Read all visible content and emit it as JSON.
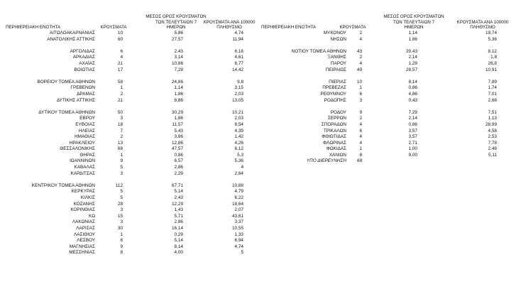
{
  "headers": {
    "unit": "ΠΕΡΙΦΕΡΕΙΑΚΗ ΕΝΟΤΗΤΑ",
    "cases": "ΚΡΟΥΣΜΑΤΑ",
    "avg7_line1": "ΜΕΣΟΣ ΟΡΟΣ ΚΡΟΥΣΜΑΤΩΝ",
    "avg7_line2": "ΤΩΝ ΤΕΛΕΥΤΑΙΩΝ 7",
    "avg7_line3": "ΗΜΕΡΩΝ",
    "per100k_line1": "ΚΡΟΥΣΜΑΤΑ ΑΝΑ 100000",
    "per100k_line2": "ΠΛΗΘΥΣΜΟ"
  },
  "left_rows": [
    {
      "name": "ΑΙΤΩΛΟΑΚΑΡΝΑΝΙΑΣ",
      "cases": "10",
      "avg": "5,86",
      "per": "4,74"
    },
    {
      "name": "ΑΝΑΤΟΛΙΚΗΣ ΑΤΤΙΚΗΣ",
      "cases": "60",
      "avg": "27,57",
      "per": "11,94"
    },
    {
      "blank": true
    },
    {
      "name": "ΑΡΓΟΛΙΔΑΣ",
      "cases": "6",
      "avg": "2,43",
      "per": "6,18"
    },
    {
      "name": "ΑΡΚΑΔΙΑΣ",
      "cases": "4",
      "avg": "3,14",
      "per": "4,61"
    },
    {
      "name": "ΑΧΑΪΑΣ",
      "cases": "21",
      "avg": "10,86",
      "per": "6,77"
    },
    {
      "name": "ΒΟΙΩΤΙΑΣ",
      "cases": "17",
      "avg": "7,29",
      "per": "14,42"
    },
    {
      "blank": true
    },
    {
      "name": "ΒΟΡΕΙΟΥ ΤΟΜΕΑ ΑΘΗΝΩΝ",
      "cases": "58",
      "avg": "24,86",
      "per": "9,8"
    },
    {
      "name": "ΓΡΕΒΕΝΩΝ",
      "cases": "1",
      "avg": "1,14",
      "per": "3,15"
    },
    {
      "name": "ΔΡΑΜΑΣ",
      "cases": "2",
      "avg": "1,86",
      "per": "2,03"
    },
    {
      "name": "ΔΥΤΙΚΗΣ ΑΤΤΙΚΗΣ",
      "cases": "21",
      "avg": "8,86",
      "per": "13,05"
    },
    {
      "blank": true
    },
    {
      "name": "ΔΥΤΙΚΟΥ ΤΟΜΕΑ ΑΘΗΝΩΝ",
      "cases": "50",
      "avg": "30,29",
      "per": "10,21"
    },
    {
      "name": "ΕΒΡΟΥ",
      "cases": "3",
      "avg": "1,86",
      "per": "2,03"
    },
    {
      "name": "ΕΥΒΟΙΑΣ",
      "cases": "18",
      "avg": "11,57",
      "per": "8,54"
    },
    {
      "name": "ΗΛΕΙΑΣ",
      "cases": "7",
      "avg": "5,43",
      "per": "4,39"
    },
    {
      "name": "ΗΜΑΘΙΑΣ",
      "cases": "2",
      "avg": "3,86",
      "per": "1,42"
    },
    {
      "name": "ΗΡΑΚΛΕΙΟΥ",
      "cases": "13",
      "avg": "12,86",
      "per": "4,26"
    },
    {
      "name": "ΘΕΣΣΑΛΟΝΙΚΗΣ",
      "cases": "68",
      "avg": "47,57",
      "per": "6,12"
    },
    {
      "name": "ΘΗΡΑΣ",
      "cases": "1",
      "avg": "0,86",
      "per": "5,3"
    },
    {
      "name": "ΙΩΑΝΝΙΝΩΝ",
      "cases": "9",
      "avg": "6,57",
      "per": "5,36"
    },
    {
      "name": "ΚΑΒΑΛΑΣ",
      "cases": "5",
      "avg": "2,86",
      "per": "4"
    },
    {
      "name": "ΚΑΡΔΙΤΣΑΣ",
      "cases": "3",
      "avg": "2,29",
      "per": "2,64"
    },
    {
      "blank": true
    },
    {
      "name": "ΚΕΝΤΡΙΚΟΥ ΤΟΜΕΑ ΑΘΗΝΩΝ",
      "cases": "112",
      "avg": "67,71",
      "per": "10,88"
    },
    {
      "name": "ΚΕΡΚΥΡΑΣ",
      "cases": "5",
      "avg": "5,14",
      "per": "4,79"
    },
    {
      "name": "ΚΙΛΚΙΣ",
      "cases": "5",
      "avg": "2,43",
      "per": "6,22"
    },
    {
      "name": "ΚΟΖΑΝΗΣ",
      "cases": "28",
      "avg": "12,29",
      "per": "18,64"
    },
    {
      "name": "ΚΟΡΙΝΘΙΑΣ",
      "cases": "3",
      "avg": "1,43",
      "per": "2,07"
    },
    {
      "name": "ΚΩ",
      "cases": "15",
      "avg": "5,71",
      "per": "43,61"
    },
    {
      "name": "ΛΑΚΩΝΙΑΣ",
      "cases": "3",
      "avg": "2,86",
      "per": "3,37"
    },
    {
      "name": "ΛΑΡΙΣΑΣ",
      "cases": "30",
      "avg": "16,14",
      "per": "10,55"
    },
    {
      "name": "ΛΑΣΙΘΙΟΥ",
      "cases": "1",
      "avg": "0,29",
      "per": "1,33"
    },
    {
      "name": "ΛΕΣΒΟΥ",
      "cases": "6",
      "avg": "5,14",
      "per": "6,94"
    },
    {
      "name": "ΜΑΓΝΗΣΙΑΣ",
      "cases": "9",
      "avg": "8,14",
      "per": "4,74"
    },
    {
      "name": "ΜΕΣΣΗΝΙΑΣ",
      "cases": "8",
      "avg": "4,00",
      "per": "5"
    }
  ],
  "right_rows": [
    {
      "name": "ΜΥΚΟΝΟΥ",
      "cases": "2",
      "avg": "1,14",
      "per": "19,74"
    },
    {
      "name": "ΝΗΣΩΝ",
      "cases": "4",
      "avg": "1,86",
      "per": "5,36"
    },
    {
      "blank": true
    },
    {
      "name": "ΝΟΤΙΟΥ ΤΟΜΕΑ ΑΘΗΝΩΝ",
      "cases": "43",
      "avg": "29,43",
      "per": "8,12"
    },
    {
      "name": "ΞΑΝΘΗΣ",
      "cases": "2",
      "avg": "2,14",
      "per": "1,8"
    },
    {
      "name": "ΠΑΡΟΥ",
      "cases": "4",
      "avg": "1,29",
      "per": "26,8"
    },
    {
      "name": "ΠΕΙΡΑΙΩΣ",
      "cases": "49",
      "avg": "28,57",
      "per": "10,91"
    },
    {
      "blank": true
    },
    {
      "name": "ΠΙΕΡΙΑΣ",
      "cases": "10",
      "avg": "8,14",
      "per": "7,89"
    },
    {
      "name": "ΠΡΕΒΕΖΑΣ",
      "cases": "1",
      "avg": "0,86",
      "per": "1,74"
    },
    {
      "name": "ΡΕΘΥΜΝΟΥ",
      "cases": "6",
      "avg": "4,86",
      "per": "7,01"
    },
    {
      "name": "ΡΟΔΟΠΗΣ",
      "cases": "3",
      "avg": "0,43",
      "per": "2,68"
    },
    {
      "blank": true
    },
    {
      "name": "ΡΟΔΟΥ",
      "cases": "9",
      "avg": "7,29",
      "per": "7,51"
    },
    {
      "name": "ΣΕΡΡΩΝ",
      "cases": "2",
      "avg": "2,14",
      "per": "1,13"
    },
    {
      "name": "ΣΠΟΡΑΔΩΝ",
      "cases": "4",
      "avg": "0,86",
      "per": "28,99"
    },
    {
      "name": "ΤΡΙΚΑΛΩΝ",
      "cases": "6",
      "avg": "3,57",
      "per": "4,58"
    },
    {
      "name": "ΦΘΙΩΤΙΔΑΣ",
      "cases": "4",
      "avg": "3,57",
      "per": "2,53"
    },
    {
      "name": "ΦΛΩΡΙΝΑΣ",
      "cases": "4",
      "avg": "2,71",
      "per": "7,78"
    },
    {
      "name": "ΦΩΚΙΔΑΣ",
      "cases": "1",
      "avg": "1,00",
      "per": "2,48"
    },
    {
      "name": "ΧΑΝΙΩΝ",
      "cases": "8",
      "avg": "9,00",
      "per": "5,11"
    },
    {
      "name": "ΥΠΟ ΔΙΕΡΕΥΝΗΣΗ",
      "cases": "68",
      "avg": "",
      "per": "",
      "italic": true
    }
  ]
}
